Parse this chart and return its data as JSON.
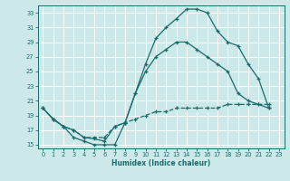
{
  "xlabel": "Humidex (Indice chaleur)",
  "bg_color": "#cce8e8",
  "line_color": "#1a6b6b",
  "grid_color": "#ffffff",
  "ylim": [
    14.5,
    34
  ],
  "xlim": [
    -0.5,
    23.5
  ],
  "yticks": [
    15,
    17,
    19,
    21,
    23,
    25,
    27,
    29,
    31,
    33
  ],
  "xticks": [
    0,
    1,
    2,
    3,
    4,
    5,
    6,
    7,
    8,
    9,
    10,
    11,
    12,
    13,
    14,
    15,
    16,
    17,
    18,
    19,
    20,
    21,
    22,
    23
  ],
  "curve1_x": [
    0,
    1,
    2,
    3,
    4,
    5,
    6,
    7,
    8,
    9,
    10,
    11,
    12,
    13,
    14,
    15,
    16,
    17,
    18,
    19,
    20,
    21,
    22
  ],
  "curve1_y": [
    20,
    18.5,
    17.5,
    16,
    15.5,
    15,
    15,
    15,
    18,
    22,
    26,
    29.5,
    31,
    32.2,
    33.5,
    33.5,
    33,
    30.5,
    29,
    28.5,
    26,
    24,
    20
  ],
  "curve2_x": [
    0,
    1,
    2,
    3,
    4,
    5,
    6,
    7,
    8,
    9,
    10,
    11,
    12,
    13,
    14,
    15,
    16,
    17,
    18,
    19,
    20,
    21,
    22
  ],
  "curve2_y": [
    20,
    18.5,
    17.5,
    17,
    16,
    15.8,
    15.5,
    17.5,
    18,
    22,
    25,
    27,
    28,
    29,
    29,
    28,
    27,
    26,
    25,
    22,
    21,
    20.5,
    20
  ],
  "curve3_x": [
    0,
    1,
    2,
    3,
    4,
    5,
    6,
    7,
    8,
    9,
    10,
    11,
    12,
    13,
    14,
    15,
    16,
    17,
    18,
    19,
    20,
    21,
    22
  ],
  "curve3_y": [
    20,
    18.5,
    17.5,
    17,
    16,
    16,
    16,
    17.5,
    18,
    18.5,
    19,
    19.5,
    19.5,
    20,
    20,
    20,
    20,
    20,
    20.5,
    20.5,
    20.5,
    20.5,
    20.5
  ]
}
